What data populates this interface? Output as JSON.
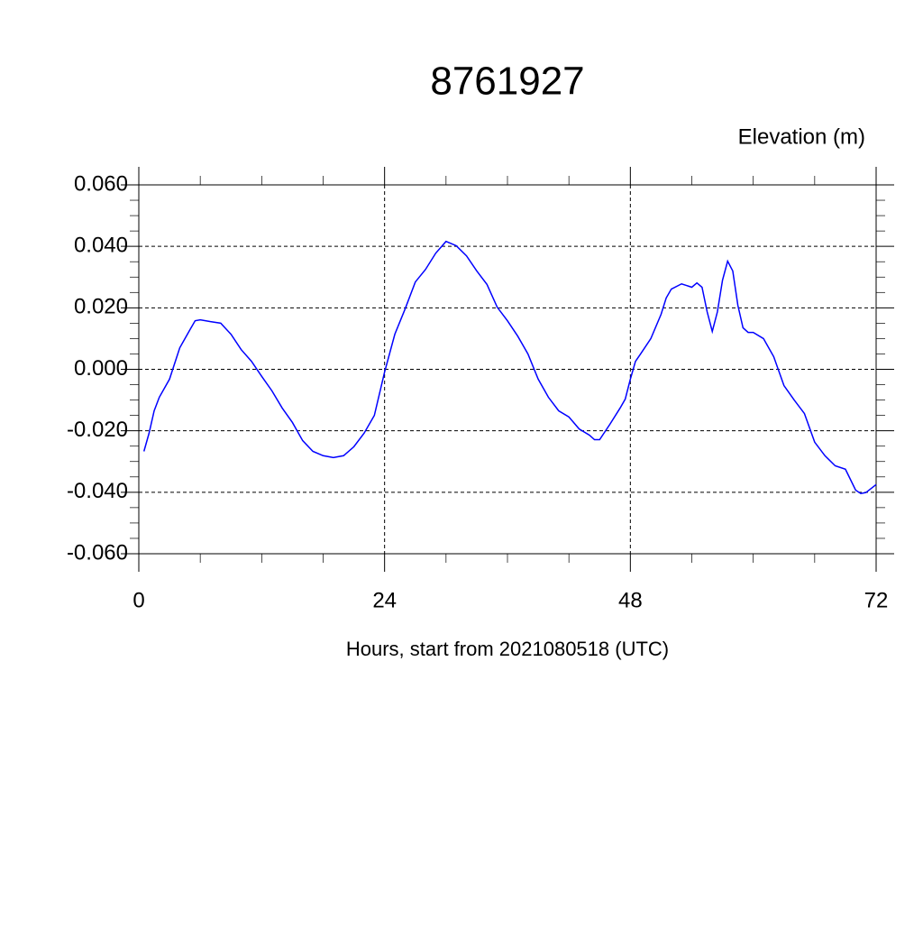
{
  "chart_data": {
    "type": "line",
    "title": "8761927",
    "ylabel": "Elevation (m)",
    "xlabel": "Hours, start from 2021080518 (UTC)",
    "x": [
      0.5,
      1,
      1.5,
      2,
      3,
      4,
      5,
      5.5,
      6,
      7,
      8,
      9,
      10,
      11,
      12,
      13,
      14,
      15,
      16,
      17,
      18,
      19,
      20,
      21,
      22,
      23,
      24,
      25,
      26,
      27,
      28,
      29,
      30,
      31,
      32,
      33,
      34,
      35,
      36,
      37,
      38,
      39,
      40,
      41,
      42,
      43,
      44,
      44.5,
      45,
      46,
      47,
      47.5,
      48,
      48.5,
      49,
      50,
      51,
      51.5,
      52,
      53,
      54,
      54.5,
      55,
      55.5,
      56,
      56.5,
      57,
      57.5,
      58,
      58.5,
      59,
      59.5,
      60,
      61,
      62,
      63,
      64,
      65,
      66,
      67,
      68,
      69,
      70,
      70.5,
      71,
      72
    ],
    "series": [
      {
        "name": "Elevation",
        "color": "#0000ff",
        "values": [
          -0.0267,
          -0.0208,
          -0.0135,
          -0.0091,
          -0.0032,
          0.007,
          0.0129,
          0.0158,
          0.0161,
          0.0155,
          0.015,
          0.0114,
          0.0064,
          0.0026,
          -0.0023,
          -0.007,
          -0.0126,
          -0.0173,
          -0.0232,
          -0.0267,
          -0.0281,
          -0.0287,
          -0.0281,
          -0.0252,
          -0.0208,
          -0.015,
          -0.0009,
          0.0114,
          0.0196,
          0.0284,
          0.0325,
          0.0378,
          0.0416,
          0.0402,
          0.0369,
          0.032,
          0.0276,
          0.0202,
          0.0158,
          0.0108,
          0.005,
          -0.0032,
          -0.0091,
          -0.0135,
          -0.0155,
          -0.0194,
          -0.0214,
          -0.0229,
          -0.0229,
          -0.0179,
          -0.0126,
          -0.0097,
          -0.0032,
          0.0026,
          0.005,
          0.01,
          0.0179,
          0.0232,
          0.0261,
          0.0278,
          0.0267,
          0.0281,
          0.0267,
          0.0187,
          0.0123,
          0.0187,
          0.029,
          0.0352,
          0.032,
          0.0208,
          0.0135,
          0.012,
          0.012,
          0.01,
          0.0041,
          -0.0053,
          -0.01,
          -0.0144,
          -0.0237,
          -0.0281,
          -0.0314,
          -0.0325,
          -0.0393,
          -0.0404,
          -0.0401,
          -0.0375
        ]
      }
    ],
    "xlim": [
      0,
      72
    ],
    "xticks": [
      0,
      24,
      48,
      72
    ],
    "xminorticks": [
      6,
      12,
      18,
      30,
      36,
      42,
      54,
      60,
      66
    ],
    "ylim": [
      -0.06,
      0.06
    ],
    "yticks": [
      {
        "value": -0.06,
        "label": "-0.060"
      },
      {
        "value": -0.04,
        "label": "-0.040"
      },
      {
        "value": -0.02,
        "label": "-0.020"
      },
      {
        "value": 0,
        "label": "0.000"
      },
      {
        "value": 0.02,
        "label": "0.020"
      },
      {
        "value": 0.04,
        "label": "0.040"
      },
      {
        "value": 0.06,
        "label": "0.060"
      }
    ],
    "yminorticks": [
      -0.055,
      -0.05,
      -0.045,
      -0.035,
      -0.03,
      -0.025,
      -0.015,
      -0.01,
      -0.005,
      0.005,
      0.01,
      0.015,
      0.025,
      0.03,
      0.035,
      0.045,
      0.05,
      0.055
    ],
    "grid": true
  }
}
